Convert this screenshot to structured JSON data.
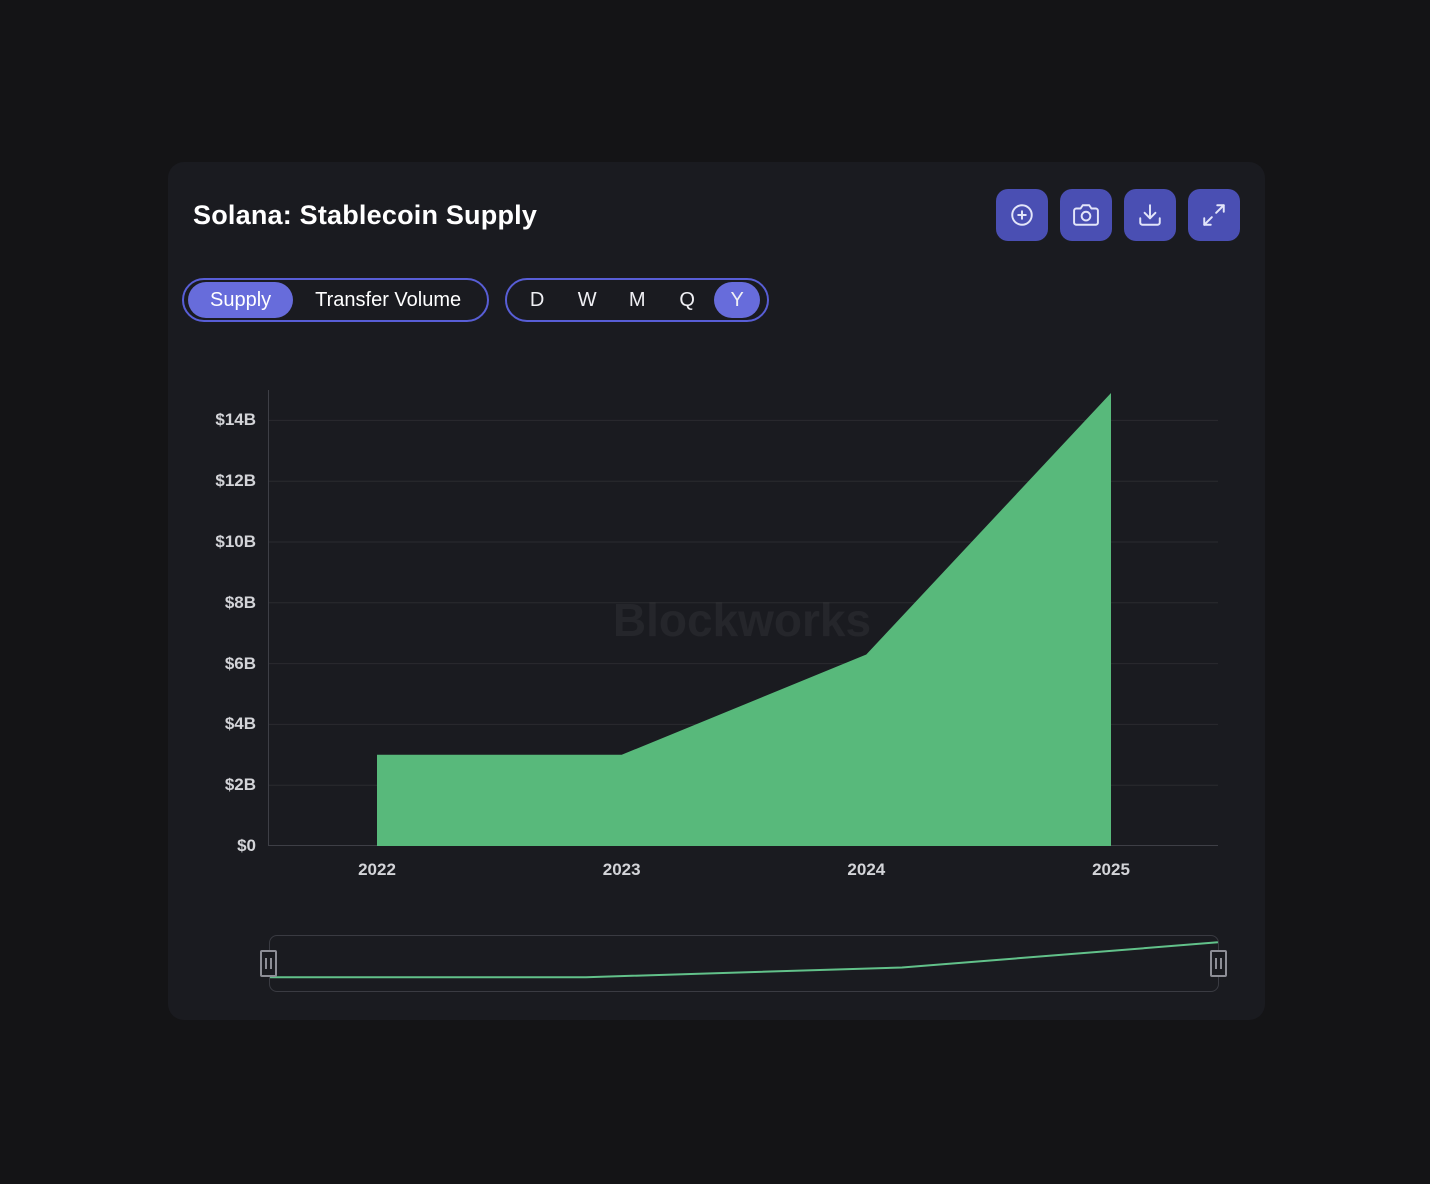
{
  "header": {
    "title": "Solana: Stablecoin Supply"
  },
  "toolbar": {
    "buttons": [
      {
        "name": "zoom-in",
        "icon": "plus-circle-icon"
      },
      {
        "name": "screenshot",
        "icon": "camera-icon"
      },
      {
        "name": "download",
        "icon": "download-icon"
      },
      {
        "name": "fullscreen",
        "icon": "expand-arrows-icon"
      }
    ]
  },
  "controls": {
    "metric_toggle": {
      "options": [
        "Supply",
        "Transfer Volume"
      ],
      "selected": "Supply"
    },
    "range_selector": {
      "options": [
        "D",
        "W",
        "M",
        "Q",
        "Y"
      ],
      "selected": "Y"
    }
  },
  "watermark": "Blockworks",
  "chart_data": {
    "type": "area",
    "title": "Solana: Stablecoin Supply",
    "x": [
      2022,
      2023,
      2024,
      2025
    ],
    "x_tick_labels": [
      "2022",
      "2023",
      "2024",
      "2025"
    ],
    "series": [
      {
        "name": "Stablecoin Supply",
        "values": [
          3.0,
          3.0,
          6.3,
          14.9
        ],
        "color": "#58b97b"
      }
    ],
    "unit": "$B",
    "y_ticks": [
      0,
      2,
      4,
      6,
      8,
      10,
      12,
      14
    ],
    "y_tick_labels": [
      "$0",
      "$2B",
      "$4B",
      "$6B",
      "$8B",
      "$10B",
      "$12B",
      "$14B"
    ],
    "ylim": [
      0,
      15
    ],
    "grid": "horizontal",
    "legend": "none"
  },
  "colors": {
    "page_bg": "#141416",
    "card_bg": "#1a1b20",
    "accent": "#4a4fb3",
    "accent_light": "#676cdb",
    "pill_border": "#585ed6",
    "icon_color": "#e3e5f9",
    "area_green": "#58b97b",
    "nav_line_green": "#62c28a",
    "axis_text": "#d3d4d8",
    "grid_line": "rgba(255,255,255,0.07)",
    "axis_line": "#3e3f46"
  }
}
